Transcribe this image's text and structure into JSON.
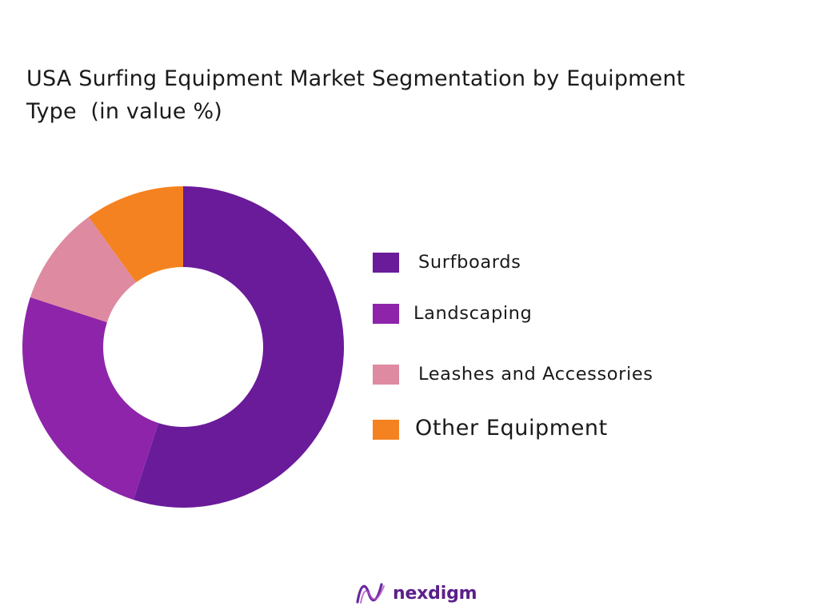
{
  "title_line1": "USA Surfing Equipment Market Segmentation by Equipment",
  "title_line2": "Type  (in value %)",
  "brand": {
    "name": "nexdigm",
    "color": "#5b1f8a",
    "logo_icon": "nexdigm-wave-logo"
  },
  "chart_data": {
    "type": "donut",
    "title": "USA Surfing Equipment Market Segmentation by Equipment Type  (in value %)",
    "categories": [
      "Surfboards",
      "Landscaping",
      "Leashes and Accessories",
      "Other Equipment"
    ],
    "values": [
      55,
      25,
      10,
      10
    ],
    "colors": [
      "#6a1b9a",
      "#8e24aa",
      "#de8aa0",
      "#f58220"
    ],
    "start_angle_deg": 0,
    "direction": "clockwise",
    "legend_position": "right"
  }
}
